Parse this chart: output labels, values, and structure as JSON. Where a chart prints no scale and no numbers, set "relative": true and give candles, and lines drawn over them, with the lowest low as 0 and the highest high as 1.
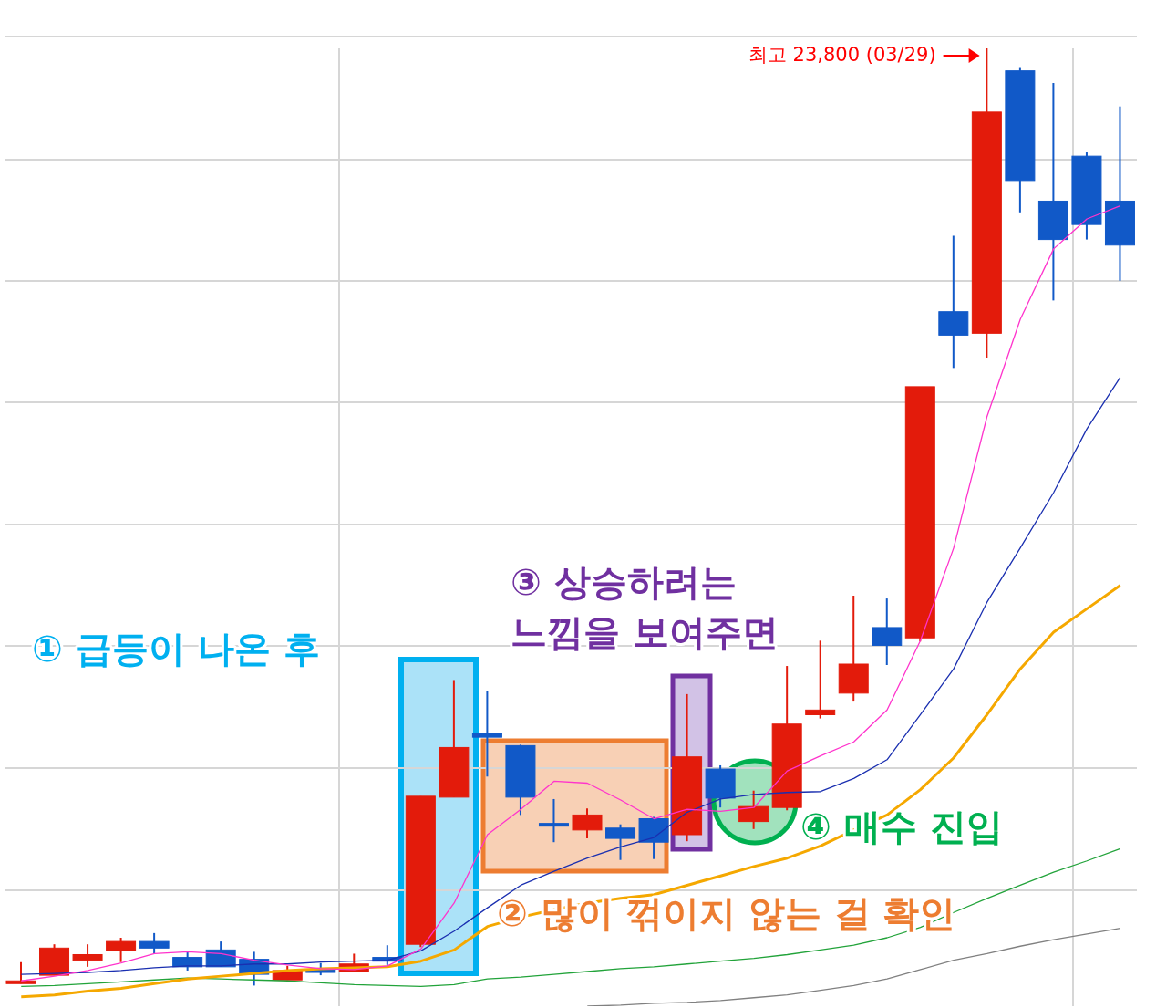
{
  "chart_data": {
    "type": "candlestick",
    "relative": true,
    "grid": true,
    "categories": [
      null,
      null,
      null,
      null,
      null,
      null,
      null,
      null,
      null,
      null,
      null,
      null,
      null,
      null,
      null,
      null,
      null,
      null,
      null,
      null,
      null,
      null,
      null,
      null,
      null,
      null,
      null,
      null,
      null,
      null,
      null,
      null,
      null,
      null
    ],
    "ohlc": [
      [
        0.005,
        0.025,
        0.002,
        0.005
      ],
      [
        0.011,
        0.044,
        0.011,
        0.04
      ],
      [
        0.027,
        0.044,
        0.02,
        0.033
      ],
      [
        0.037,
        0.051,
        0.025,
        0.047
      ],
      [
        0.047,
        0.056,
        0.034,
        0.04
      ],
      [
        0.03,
        0.036,
        0.016,
        0.02
      ],
      [
        0.038,
        0.047,
        0.02,
        0.02
      ],
      [
        0.028,
        0.036,
        0,
        0.012
      ],
      [
        0.006,
        0.021,
        0.006,
        0.016
      ],
      [
        0.017,
        0.024,
        0.011,
        0.014
      ],
      [
        0.015,
        0.034,
        0.015,
        0.023
      ],
      [
        0.03,
        0.043,
        0.022,
        0.026
      ],
      [
        0.044,
        0.202,
        0.041,
        0.202
      ],
      [
        0.201,
        0.326,
        0.201,
        0.254
      ],
      [
        0.269,
        0.314,
        0.223,
        0.265
      ],
      [
        0.256,
        0.257,
        0.182,
        0.201
      ],
      [
        0.173,
        0.199,
        0.153,
        0.173
      ],
      [
        0.166,
        0.189,
        0.157,
        0.182
      ],
      [
        0.168,
        0.172,
        0.134,
        0.157
      ],
      [
        0.178,
        0.18,
        0.135,
        0.153
      ],
      [
        0.161,
        0.311,
        0.154,
        0.244
      ],
      [
        0.231,
        0.235,
        0.19,
        0.2
      ],
      [
        0.175,
        0.208,
        0.167,
        0.191
      ],
      [
        0.19,
        0.341,
        0.187,
        0.279
      ],
      [
        0.289,
        0.368,
        0.285,
        0.294
      ],
      [
        0.312,
        0.416,
        0.303,
        0.343
      ],
      [
        0.382,
        0.413,
        0.342,
        0.363
      ],
      [
        0.371,
        0.639,
        0.367,
        0.639
      ],
      [
        0.719,
        0.8,
        0.659,
        0.694
      ],
      [
        0.696,
        1,
        0.67,
        0.932
      ],
      [
        0.976,
        0.98,
        0.825,
        0.859
      ],
      [
        0.837,
        0.963,
        0.731,
        0.796
      ],
      [
        0.885,
        0.889,
        0.796,
        0.812
      ],
      [
        0.837,
        0.938,
        0.752,
        0.79
      ]
    ],
    "colors": [
      "#e31b0b",
      "#e31b0b",
      "#e31b0b",
      "#e31b0b",
      "#1159c8",
      "#1159c8",
      "#1159c8",
      "#1159c8",
      "#e31b0b",
      "#1159c8",
      "#e31b0b",
      "#1159c8",
      "#e31b0b",
      "#e31b0b",
      "#1159c8",
      "#1159c8",
      "#1159c8",
      "#e31b0b",
      "#1159c8",
      "#1159c8",
      "#e31b0b",
      "#1159c8",
      "#e31b0b",
      "#e31b0b",
      "#e31b0b",
      "#e31b0b",
      "#1159c8",
      "#e31b0b",
      "#1159c8",
      "#e31b0b",
      "#1159c8",
      "#1159c8",
      "#1159c8",
      "#1159c8"
    ],
    "series": [
      {
        "type": "line",
        "color": "#808080",
        "values": [
          null,
          null,
          null,
          null,
          null,
          null,
          null,
          null,
          null,
          null,
          null,
          null,
          null,
          null,
          null,
          null,
          null,
          -0.022,
          -0.021,
          -0.019,
          -0.018,
          -0.016,
          -0.013,
          -0.01,
          -0.005,
          0,
          0.007,
          0.017,
          0.027,
          0.034,
          0.042,
          0.049,
          0.055,
          0.061
        ]
      },
      {
        "type": "line",
        "color": "#22a33a",
        "values": [
          -0.001,
          0,
          0.002,
          0.004,
          0.006,
          0.008,
          0.007,
          0.006,
          0.005,
          0.003,
          0.001,
          0,
          -0.001,
          0.001,
          0.007,
          0.009,
          0.012,
          0.015,
          0.018,
          0.02,
          0.023,
          0.026,
          0.029,
          0.033,
          0.038,
          0.043,
          0.051,
          0.062,
          0.078,
          0.093,
          0.107,
          0.121,
          0.133,
          0.146
        ]
      },
      {
        "type": "line",
        "color": "#f5a800",
        "values": [
          -0.012,
          -0.01,
          -0.006,
          -0.003,
          0.002,
          0.007,
          0.01,
          0.013,
          0.016,
          0.018,
          0.019,
          0.02,
          0.026,
          0.038,
          0.063,
          0.073,
          0.081,
          0.088,
          0.093,
          0.097,
          0.107,
          0.117,
          0.127,
          0.136,
          0.149,
          0.166,
          0.182,
          0.209,
          0.243,
          0.289,
          0.338,
          0.377,
          0.402,
          0.427
        ]
      },
      {
        "type": "line",
        "color": "#1a2fb0",
        "values": [
          0.012,
          0.013,
          0.014,
          0.016,
          0.019,
          0.021,
          0.021,
          0.023,
          0.023,
          0.025,
          0.026,
          0.027,
          0.037,
          0.058,
          0.083,
          0.107,
          0.122,
          0.136,
          0.148,
          0.158,
          0.185,
          0.199,
          0.204,
          0.206,
          0.207,
          0.221,
          0.241,
          0.289,
          0.338,
          0.409,
          0.467,
          0.526,
          0.594,
          0.649
        ]
      },
      {
        "type": "line",
        "color": "#ff33cc",
        "values": [
          0.005,
          0.01,
          0.016,
          0.024,
          0.034,
          0.036,
          0.034,
          0.027,
          0.022,
          0.018,
          0.017,
          0.021,
          0.039,
          0.088,
          0.161,
          0.188,
          0.218,
          0.216,
          0.198,
          0.178,
          0.188,
          0.186,
          0.19,
          0.229,
          0.245,
          0.26,
          0.294,
          0.368,
          0.467,
          0.607,
          0.711,
          0.786,
          0.818,
          0.832
        ]
      }
    ],
    "annotations": [
      "최고 23,800 (03/29)",
      "① 급등이 나온 후",
      "② 많이 꺾이지 않는 걸 확인",
      "③ 상승하려는\n느낌을 보여주면",
      "④ 매수 진입"
    ]
  }
}
